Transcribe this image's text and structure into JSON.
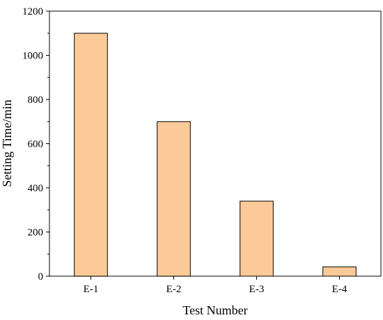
{
  "chart_data": {
    "type": "bar",
    "title": "",
    "xlabel": "Test Number",
    "ylabel": "Setting Time/min",
    "categories": [
      "E-1",
      "E-2",
      "E-3",
      "E-4"
    ],
    "values": [
      1100,
      700,
      340,
      42
    ],
    "ylim": [
      0,
      1200
    ],
    "yticks": [
      0,
      200,
      400,
      600,
      800,
      1000,
      1200
    ],
    "grid": false,
    "legend": "none",
    "bar_color": "#fcc998",
    "bar_edge_color": "#000000"
  }
}
